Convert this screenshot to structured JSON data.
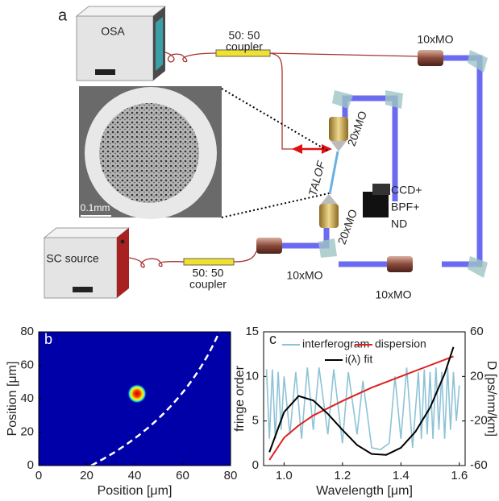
{
  "diagram": {
    "label": "a",
    "osa": "OSA",
    "couplers": [
      [
        "50: 50",
        "coupler"
      ],
      [
        "50: 50",
        "coupler"
      ]
    ],
    "objectives": [
      "10xMO",
      "20xMO",
      "20xMO",
      "10xMO",
      "10xMO"
    ],
    "fiber": "TALOF",
    "camera": [
      "CCD+",
      "BPF+",
      "ND"
    ],
    "source": "SC source",
    "scale_bar": "0.1mm"
  },
  "chart_data": [
    {
      "type": "heatmap",
      "label": "b",
      "xlabel": "Position [μm]",
      "ylabel": "Position [μm]",
      "xlim": [
        0,
        80
      ],
      "ylim": [
        0,
        80
      ],
      "xticks": [
        0,
        20,
        40,
        60,
        80
      ],
      "yticks": [
        0,
        20,
        40,
        60,
        80
      ],
      "spot": {
        "x": 41,
        "y": 43
      }
    },
    {
      "type": "line",
      "label": "c",
      "xlabel": "Wavelength [μm]",
      "ylabel": "fringe order",
      "y2label": "D [ps/nm/km]",
      "xlim": [
        0.93,
        1.62
      ],
      "ylim": [
        0,
        15
      ],
      "y2lim": [
        -60,
        60
      ],
      "xticks": [
        {
          "value": 1.0,
          "label": "1.0"
        },
        1.2,
        1.4,
        1.6
      ],
      "yticks": [
        0,
        5,
        10,
        15
      ],
      "y2ticks": [
        -60,
        -20,
        20,
        60
      ],
      "series": [
        {
          "name": "interferogram",
          "color": "#8ec3d6",
          "x": [
            0.94,
            0.95,
            0.96,
            0.97,
            0.98,
            0.99,
            1.0,
            1.02,
            1.04,
            1.06,
            1.08,
            1.1,
            1.12,
            1.15,
            1.17,
            1.2,
            1.22,
            1.25,
            1.27,
            1.3,
            1.33,
            1.36,
            1.38,
            1.4,
            1.42,
            1.44,
            1.46,
            1.47,
            1.48,
            1.49,
            1.5,
            1.51,
            1.52,
            1.53,
            1.54,
            1.55,
            1.56,
            1.57,
            1.58,
            1.59,
            1.6
          ],
          "values": [
            10.8,
            3,
            10.8,
            3,
            10.5,
            4,
            10,
            3.5,
            10.5,
            3,
            11,
            4,
            11,
            3.5,
            10.8,
            2.5,
            10.5,
            3.5,
            9.5,
            2,
            1.8,
            2.5,
            10,
            3,
            11,
            2,
            10.5,
            3,
            10.8,
            3.5,
            10.5,
            3,
            11,
            4,
            10.5,
            3,
            11,
            4,
            10.5,
            5,
            9
          ]
        },
        {
          "name": "dispersion",
          "color": "#e02020",
          "axis": "y2",
          "x": [
            0.95,
            1.0,
            1.05,
            1.1,
            1.2,
            1.3,
            1.4,
            1.5,
            1.58
          ],
          "values": [
            -55,
            -35,
            -24,
            -15,
            -2,
            10,
            20,
            30,
            38
          ]
        },
        {
          "name": "i(λ) fit",
          "color": "#000000",
          "x": [
            0.95,
            1.0,
            1.05,
            1.1,
            1.15,
            1.2,
            1.25,
            1.3,
            1.35,
            1.4,
            1.45,
            1.5,
            1.55,
            1.58
          ],
          "values": [
            1.5,
            6.0,
            7.8,
            7.3,
            5.8,
            4.0,
            2.3,
            1.3,
            1.2,
            2.0,
            3.8,
            6.5,
            10.3,
            13.3
          ]
        }
      ]
    }
  ]
}
